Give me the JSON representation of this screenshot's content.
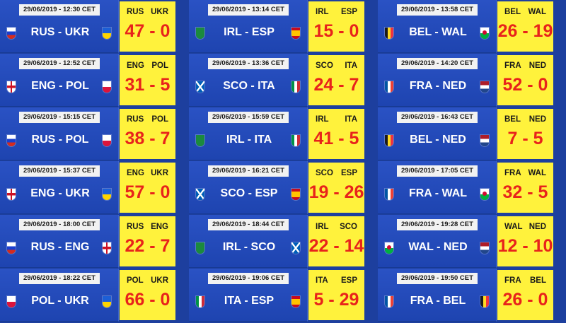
{
  "colors": {
    "background": "#1d3f9e",
    "date_tag": "#f2f2f2",
    "score_box": "#fff23c",
    "score_text": "#e8231b"
  },
  "flags": {
    "RUS": {
      "icon": "russia-flag-icon",
      "stripes": [
        "#ffffff",
        "#1a3fcf",
        "#d52b1e"
      ],
      "dir": "h"
    },
    "UKR": {
      "icon": "ukraine-flag-icon",
      "stripes": [
        "#1c5fd6",
        "#ffd500"
      ],
      "dir": "h"
    },
    "ENG": {
      "icon": "england-flag-icon",
      "cross": [
        "#ffffff",
        "#ce1124"
      ]
    },
    "POL": {
      "icon": "poland-flag-icon",
      "stripes": [
        "#ffffff",
        "#dc143c"
      ],
      "dir": "h"
    },
    "IRL": {
      "icon": "ireland-rugby-flag-icon",
      "stripes": [
        "#1b8a3e"
      ],
      "dir": "h"
    },
    "ESP": {
      "icon": "spain-flag-icon",
      "stripes": [
        "#c60b1e",
        "#ffc400",
        "#ffc400",
        "#c60b1e"
      ],
      "dir": "h"
    },
    "SCO": {
      "icon": "scotland-flag-icon",
      "saltire": [
        "#005eb8",
        "#ffffff"
      ]
    },
    "ITA": {
      "icon": "italy-flag-icon",
      "stripes": [
        "#009246",
        "#ffffff",
        "#ce2b37"
      ],
      "dir": "v"
    },
    "BEL": {
      "icon": "belgium-flag-icon",
      "stripes": [
        "#1a1a1a",
        "#fdda24",
        "#ef3340"
      ],
      "dir": "v"
    },
    "WAL": {
      "icon": "wales-flag-icon",
      "stripes": [
        "#ffffff",
        "#00b140"
      ],
      "dir": "h",
      "dragon": "#d30731"
    },
    "FRA": {
      "icon": "france-flag-icon",
      "stripes": [
        "#0055a4",
        "#ffffff",
        "#ef4135"
      ],
      "dir": "v"
    },
    "NED": {
      "icon": "netherlands-flag-icon",
      "stripes": [
        "#ae1c28",
        "#ffffff",
        "#21468b"
      ],
      "dir": "h"
    }
  },
  "columns": [
    {
      "matches": [
        {
          "date": "29/06/2019 - 12:30 CET",
          "teams": "RUS - UKR",
          "home": "RUS",
          "away": "UKR",
          "score": "47 - 0"
        },
        {
          "date": "29/06/2019 - 12:52 CET",
          "teams": "ENG - POL",
          "home": "ENG",
          "away": "POL",
          "score": "31 - 5"
        },
        {
          "date": "29/06/2019 - 15:15 CET",
          "teams": "RUS - POL",
          "home": "RUS",
          "away": "POL",
          "score": "38 - 7"
        },
        {
          "date": "29/06/2019 - 15:37 CET",
          "teams": "ENG - UKR",
          "home": "ENG",
          "away": "UKR",
          "score": "57 - 0"
        },
        {
          "date": "29/06/2019 - 18:00 CET",
          "teams": "RUS - ENG",
          "home": "RUS",
          "away": "ENG",
          "score": "22 - 7"
        },
        {
          "date": "29/06/2019 - 18:22 CET",
          "teams": "POL - UKR",
          "home": "POL",
          "away": "UKR",
          "score": "66 - 0"
        }
      ]
    },
    {
      "matches": [
        {
          "date": "29/06/2019 - 13:14 CET",
          "teams": "IRL - ESP",
          "home": "IRL",
          "away": "ESP",
          "score": "15 - 0"
        },
        {
          "date": "29/06/2019 - 13:36 CET",
          "teams": "SCO - ITA",
          "home": "SCO",
          "away": "ITA",
          "score": "24 - 7"
        },
        {
          "date": "29/06/2019 - 15:59 CET",
          "teams": "IRL - ITA",
          "home": "IRL",
          "away": "ITA",
          "score": "41 - 5"
        },
        {
          "date": "29/06/2019 - 16:21 CET",
          "teams": "SCO - ESP",
          "home": "SCO",
          "away": "ESP",
          "score": "19 - 26"
        },
        {
          "date": "29/06/2019 - 18:44 CET",
          "teams": "IRL - SCO",
          "home": "IRL",
          "away": "SCO",
          "score": "22 - 14"
        },
        {
          "date": "29/06/2019 - 19:06 CET",
          "teams": "ITA - ESP",
          "home": "ITA",
          "away": "ESP",
          "score": "5 - 29"
        }
      ]
    },
    {
      "matches": [
        {
          "date": "29/06/2019 - 13:58 CET",
          "teams": "BEL - WAL",
          "home": "BEL",
          "away": "WAL",
          "score": "26 - 19"
        },
        {
          "date": "29/06/2019 - 14:20 CET",
          "teams": "FRA - NED",
          "home": "FRA",
          "away": "NED",
          "score": "52 - 0"
        },
        {
          "date": "29/06/2019 - 16:43 CET",
          "teams": "BEL - NED",
          "home": "BEL",
          "away": "NED",
          "score": "7 - 5"
        },
        {
          "date": "29/06/2019 - 17:05 CET",
          "teams": "FRA - WAL",
          "home": "FRA",
          "away": "WAL",
          "score": "32 - 5"
        },
        {
          "date": "29/06/2019 - 19:28 CET",
          "teams": "WAL - NED",
          "home": "WAL",
          "away": "NED",
          "score": "12 - 10"
        },
        {
          "date": "29/06/2019 - 19:50 CET",
          "teams": "FRA - BEL",
          "home": "FRA",
          "away": "BEL",
          "score": "26 - 0"
        }
      ]
    }
  ]
}
